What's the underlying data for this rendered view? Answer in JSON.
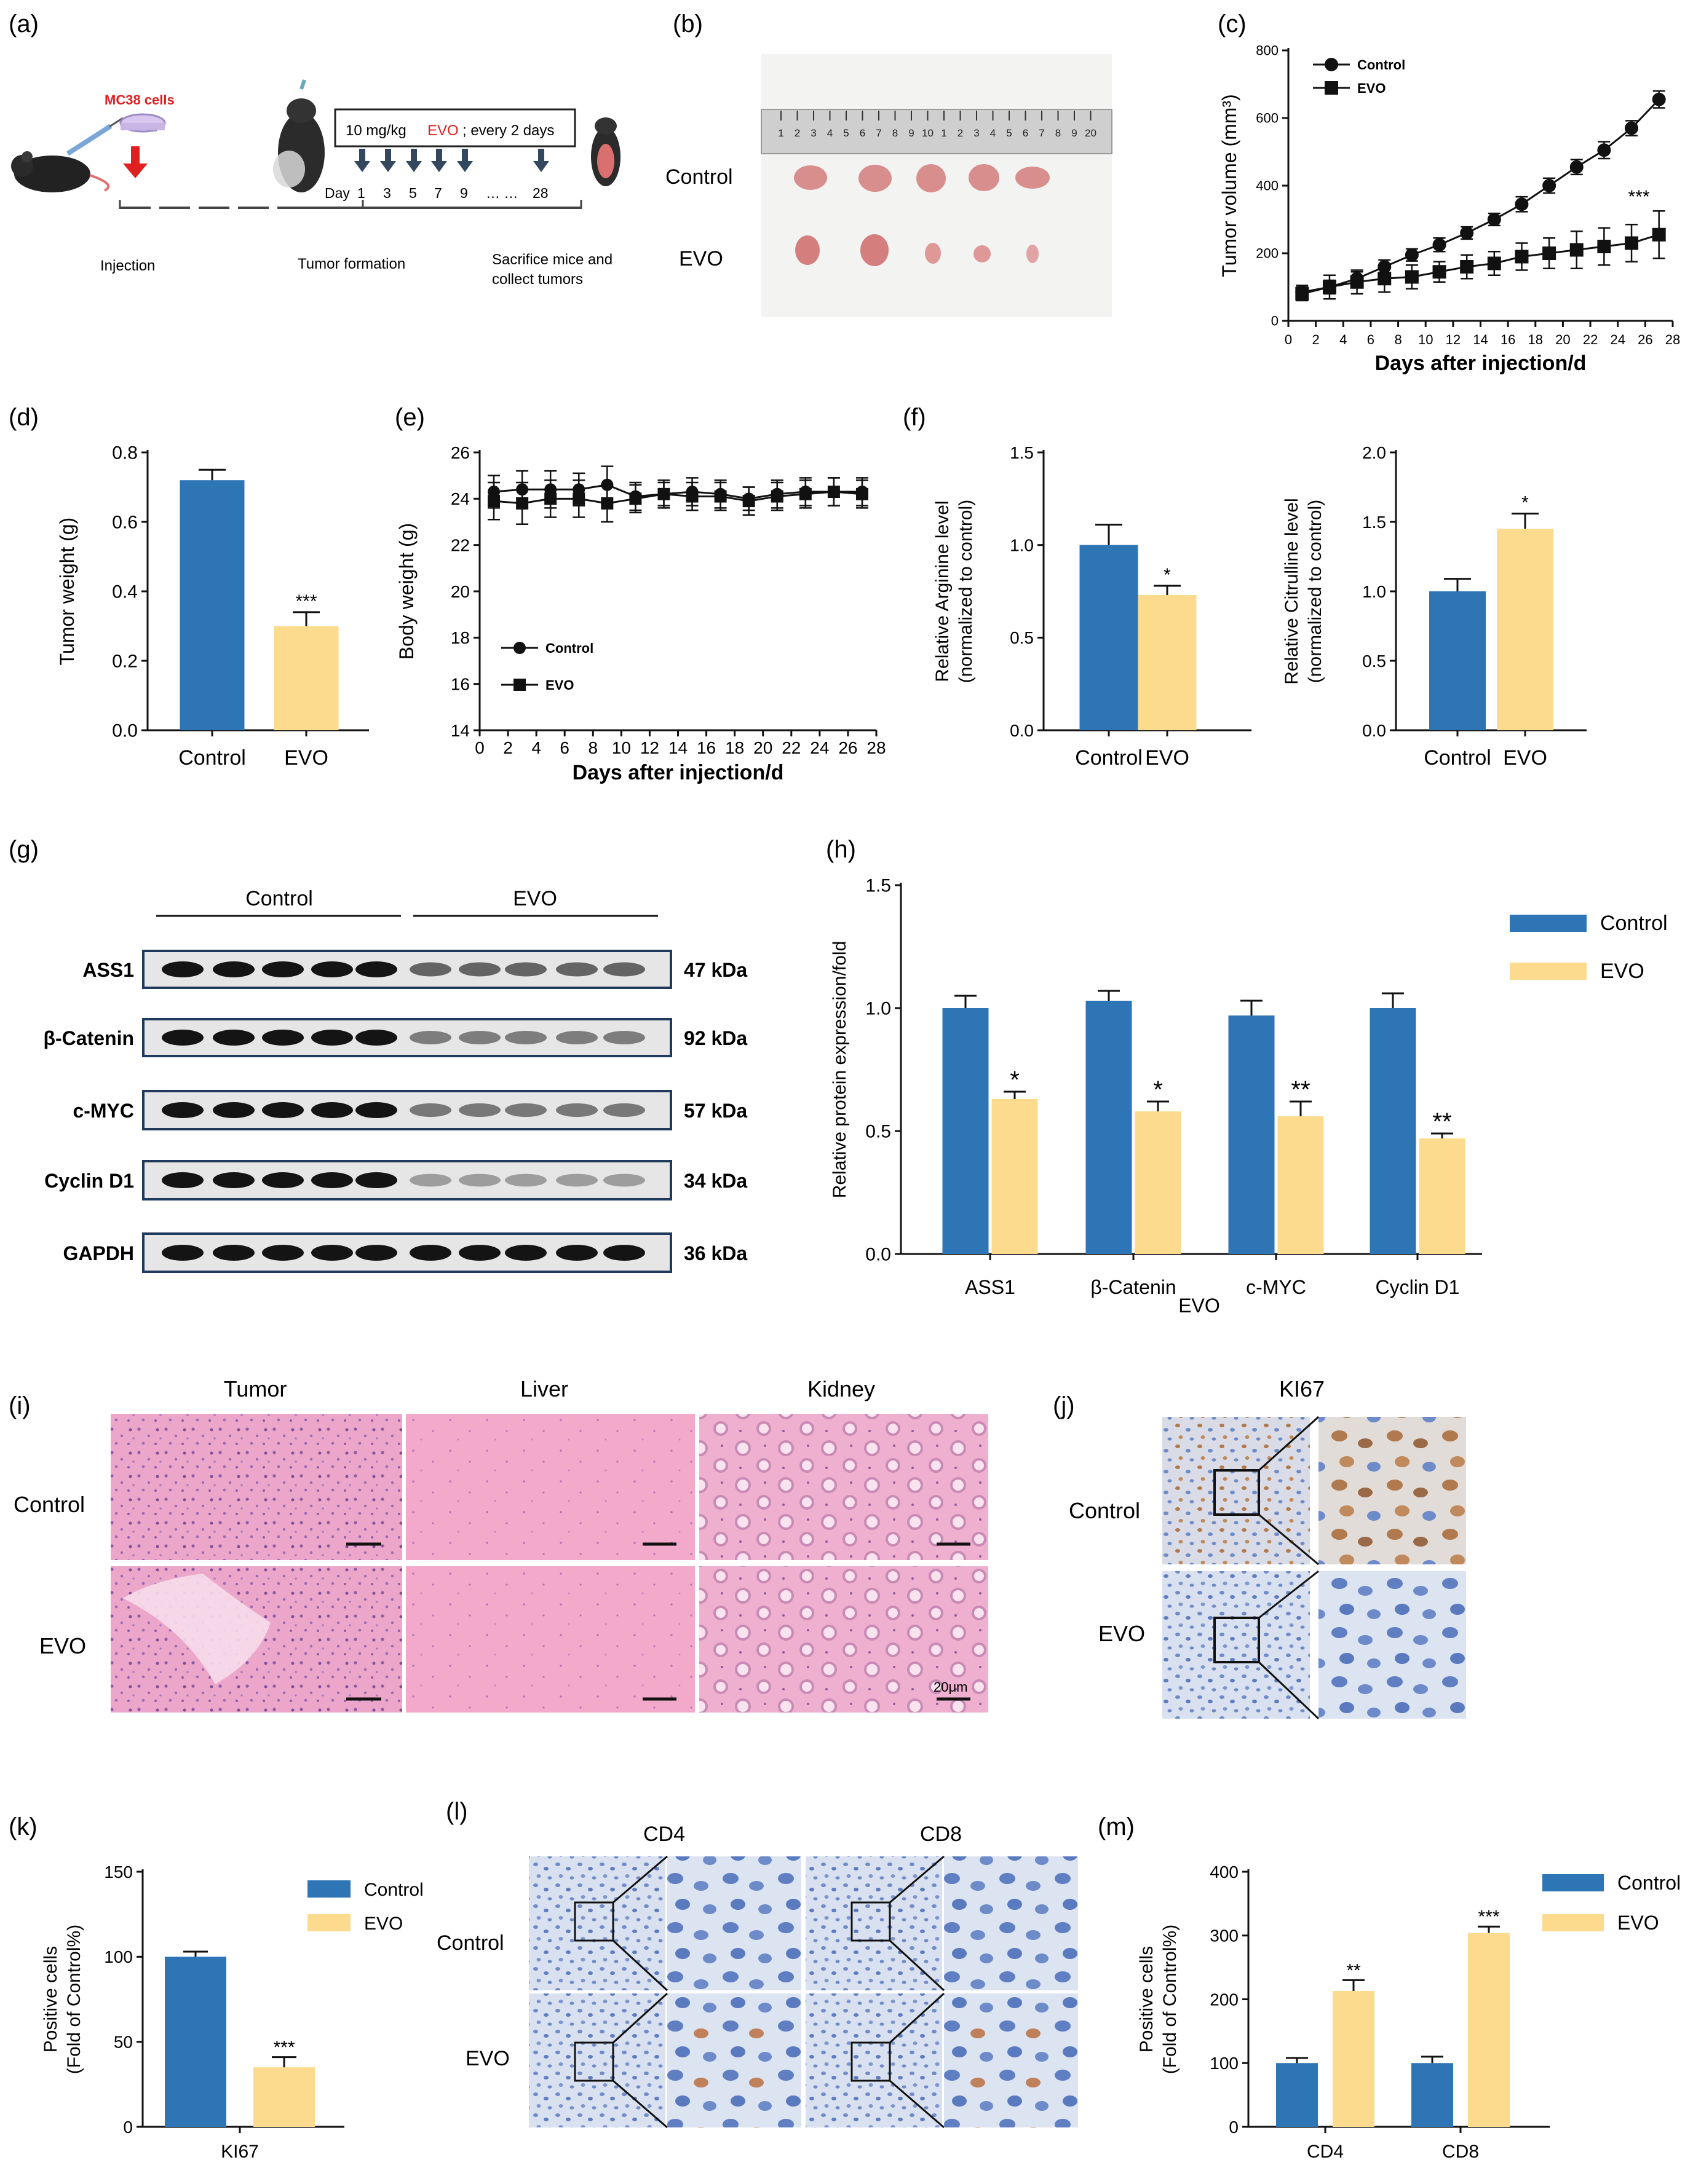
{
  "colors": {
    "blue": "#2E75B6",
    "yellow": "#FCDB8E",
    "black": "#111111",
    "he_pink": "#EFB0CF",
    "ihc_blue": "#A9BCE0",
    "ihc_brown": "#B9815A",
    "tumor_tissue": "#D98E8E",
    "red": "#E02020"
  },
  "panels": {
    "a": {
      "label": "(a)",
      "cells_label": "MC38 cells",
      "dose": "10  mg/kg",
      "drug": "EVO",
      "schedule": "; every  2  days",
      "day_prefix": "Day",
      "days": [
        "1",
        "3",
        "5",
        "7",
        "9",
        "28"
      ],
      "ellipsis": "… …",
      "stage_injection": "Injection",
      "stage_tumor": "Tumor formation",
      "stage_sacrifice_1": "Sacrifice mice and",
      "stage_sacrifice_2": "collect tumors"
    },
    "b": {
      "label": "(b)",
      "row_control": "Control",
      "row_evo": "EVO",
      "ruler_ticks": [
        "1",
        "2",
        "3",
        "4",
        "5",
        "6",
        "7",
        "8",
        "9",
        "10",
        "1",
        "2",
        "3",
        "4",
        "5",
        "6",
        "7",
        "8",
        "9",
        "20"
      ]
    },
    "c": {
      "label": "(c)"
    },
    "d": {
      "label": "(d)"
    },
    "e": {
      "label": "(e)"
    },
    "f": {
      "label": "(f)"
    },
    "g": {
      "label": "(g)",
      "group_control": "Control",
      "group_evo": "EVO",
      "proteins": [
        "ASS1",
        "β-Catenin",
        "c-MYC",
        "Cyclin D1",
        "GAPDH"
      ],
      "sizes": [
        "47 kDa",
        "92 kDa",
        "57 kDa",
        "34 kDa",
        "36 kDa"
      ]
    },
    "h": {
      "label": "(h)",
      "stray_text": "EVO"
    },
    "i": {
      "label": "(i)",
      "col_tumor": "Tumor",
      "col_liver": "Liver",
      "col_kidney": "Kidney",
      "row_control": "Control",
      "row_evo": "EVO",
      "scale": "20μm"
    },
    "j": {
      "label": "(j)",
      "title": "KI67",
      "row_control": "Control",
      "row_evo": "EVO"
    },
    "k": {
      "label": "(k)"
    },
    "l": {
      "label": "(l)",
      "col_cd4": "CD4",
      "col_cd8": "CD8",
      "row_control": "Control",
      "row_evo": "EVO"
    },
    "m": {
      "label": "(m)"
    }
  },
  "chart_data": [
    {
      "id": "c",
      "type": "line",
      "xlabel": "Days after injection/d",
      "ylabel": "Tumor volume (mm³)",
      "xlim": [
        0,
        28
      ],
      "ylim": [
        0,
        800
      ],
      "xticks": [
        0,
        2,
        4,
        6,
        8,
        10,
        12,
        14,
        16,
        18,
        20,
        22,
        24,
        26,
        28
      ],
      "yticks": [
        0,
        200,
        400,
        600,
        800
      ],
      "legend_position": "top-left",
      "annotation": "***",
      "series": [
        {
          "name": "Control",
          "marker": "circle",
          "x": [
            1,
            3,
            5,
            7,
            9,
            11,
            13,
            15,
            17,
            19,
            21,
            23,
            25,
            27
          ],
          "y": [
            85,
            100,
            125,
            160,
            195,
            225,
            260,
            300,
            345,
            400,
            455,
            505,
            570,
            655
          ],
          "err": [
            20,
            20,
            20,
            20,
            18,
            20,
            18,
            18,
            22,
            22,
            22,
            25,
            22,
            25
          ]
        },
        {
          "name": "EVO",
          "marker": "square",
          "x": [
            1,
            3,
            5,
            7,
            9,
            11,
            13,
            15,
            17,
            19,
            21,
            23,
            25,
            27
          ],
          "y": [
            80,
            100,
            115,
            125,
            130,
            145,
            160,
            170,
            190,
            200,
            210,
            220,
            230,
            255
          ],
          "err": [
            20,
            35,
            35,
            40,
            35,
            30,
            35,
            35,
            40,
            45,
            55,
            55,
            55,
            70
          ]
        }
      ]
    },
    {
      "id": "d",
      "type": "bar",
      "categories": [
        "Control",
        "EVO"
      ],
      "values": [
        0.72,
        0.3
      ],
      "errors": [
        0.03,
        0.04
      ],
      "ylabel": "Tumor weight (g)",
      "ylim": [
        0,
        0.8
      ],
      "yticks": [
        "0.0",
        "0.2",
        "0.4",
        "0.6",
        "0.8"
      ],
      "annotations": [
        "",
        "***"
      ]
    },
    {
      "id": "e",
      "type": "line",
      "xlabel": "Days after injection/d",
      "ylabel": "Body weight (g)",
      "xlim": [
        0,
        28
      ],
      "ylim": [
        14,
        26
      ],
      "xticks": [
        0,
        2,
        4,
        6,
        8,
        10,
        12,
        14,
        16,
        18,
        20,
        22,
        24,
        26,
        28
      ],
      "yticks": [
        14,
        16,
        18,
        20,
        22,
        24,
        26
      ],
      "legend_position": "lower-left",
      "series": [
        {
          "name": "Control",
          "marker": "circle",
          "x": [
            1,
            3,
            5,
            7,
            9,
            11,
            13,
            15,
            17,
            19,
            21,
            23,
            25,
            27
          ],
          "y": [
            24.3,
            24.4,
            24.4,
            24.4,
            24.6,
            24.1,
            24.2,
            24.3,
            24.2,
            24.0,
            24.2,
            24.3,
            24.3,
            24.3
          ],
          "err": [
            0.7,
            0.8,
            0.8,
            0.7,
            0.8,
            0.6,
            0.5,
            0.6,
            0.6,
            0.5,
            0.6,
            0.6,
            0.6,
            0.6
          ]
        },
        {
          "name": "EVO",
          "marker": "square",
          "x": [
            1,
            3,
            5,
            7,
            9,
            11,
            13,
            15,
            17,
            19,
            21,
            23,
            25,
            27
          ],
          "y": [
            23.9,
            23.8,
            24.0,
            24.0,
            23.8,
            24.0,
            24.2,
            24.1,
            24.1,
            23.9,
            24.1,
            24.2,
            24.3,
            24.2
          ],
          "err": [
            0.8,
            0.9,
            0.8,
            0.8,
            0.8,
            0.6,
            0.6,
            0.6,
            0.6,
            0.6,
            0.6,
            0.6,
            0.6,
            0.6
          ]
        }
      ]
    },
    {
      "id": "f1",
      "type": "bar",
      "categories": [
        "Control",
        "EVO"
      ],
      "values": [
        1.0,
        0.73
      ],
      "errors": [
        0.11,
        0.05
      ],
      "ylabel": "Relative Arginine level",
      "ylabel2": "(normalized to control)",
      "ylim": [
        0,
        1.5
      ],
      "yticks": [
        "0.0",
        "0.5",
        "1.0",
        "1.5"
      ],
      "annotations": [
        "",
        "*"
      ]
    },
    {
      "id": "f2",
      "type": "bar",
      "categories": [
        "Control",
        "EVO"
      ],
      "values": [
        1.0,
        1.45
      ],
      "errors": [
        0.09,
        0.11
      ],
      "ylabel": "Relative Citrulline level",
      "ylabel2": "(normalized to control)",
      "ylim": [
        0,
        2.0
      ],
      "yticks": [
        "0.0",
        "0.5",
        "1.0",
        "1.5",
        "2.0"
      ],
      "annotations": [
        "",
        "*"
      ]
    },
    {
      "id": "h",
      "type": "bar",
      "categories": [
        "ASS1",
        "β-Catenin",
        "c-MYC",
        "Cyclin D1"
      ],
      "series": [
        {
          "name": "Control",
          "values": [
            1.0,
            1.03,
            0.97,
            1.0
          ],
          "errors": [
            0.05,
            0.04,
            0.06,
            0.06
          ]
        },
        {
          "name": "EVO",
          "values": [
            0.63,
            0.58,
            0.56,
            0.47
          ],
          "errors": [
            0.03,
            0.04,
            0.06,
            0.02
          ]
        }
      ],
      "ylabel": "Relative protein expression/fold",
      "ylim": [
        0,
        1.5
      ],
      "yticks": [
        "0.0",
        "0.5",
        "1.0",
        "1.5"
      ],
      "annotations": [
        "*",
        "*",
        "**",
        "**"
      ],
      "legend_position": "top-right"
    },
    {
      "id": "k",
      "type": "bar",
      "categories": [
        "KI67"
      ],
      "series": [
        {
          "name": "Control",
          "values": [
            100
          ],
          "errors": [
            3
          ]
        },
        {
          "name": "EVO",
          "values": [
            35
          ],
          "errors": [
            6
          ]
        }
      ],
      "ylabel": "Positive cells",
      "ylabel2": "(Fold of Control%)",
      "ylim": [
        0,
        150
      ],
      "yticks": [
        "0",
        "50",
        "100",
        "150"
      ],
      "annotations": [
        "***"
      ],
      "legend_position": "top-right"
    },
    {
      "id": "m",
      "type": "bar",
      "categories": [
        "CD4",
        "CD8"
      ],
      "series": [
        {
          "name": "Control",
          "values": [
            100,
            100
          ],
          "errors": [
            8,
            10
          ]
        },
        {
          "name": "EVO",
          "values": [
            213,
            304
          ],
          "errors": [
            17,
            10
          ]
        }
      ],
      "ylabel": "Positive cells",
      "ylabel2": "(Fold of Control%)",
      "ylim": [
        0,
        400
      ],
      "yticks": [
        "0",
        "100",
        "200",
        "300",
        "400"
      ],
      "annotations": [
        "**",
        "***"
      ],
      "legend_position": "top-right"
    }
  ]
}
